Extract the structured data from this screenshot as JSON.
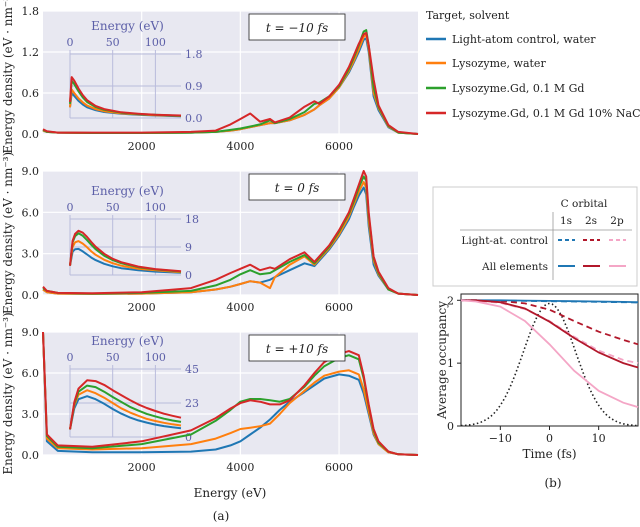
{
  "chart_data": [
    {
      "type": "line",
      "panel": "a",
      "time_label": "t = −10 fs",
      "xlabel": "Energy (eV)",
      "ylabel": "Energy density (eV · nm⁻³)",
      "xlim": [
        0,
        7600
      ],
      "ylim": [
        0,
        1.8
      ],
      "x_ticks": [
        "2000",
        "4000",
        "6000"
      ],
      "y_ticks": [
        "0.0",
        "0.6",
        "1.2",
        "1.8"
      ],
      "x": [
        0,
        80,
        300,
        1000,
        2000,
        3000,
        3500,
        3800,
        4000,
        4200,
        4400,
        4600,
        4700,
        5000,
        5300,
        5500,
        5600,
        5800,
        6000,
        6200,
        6300,
        6400,
        6500,
        6550,
        6600,
        6700,
        6800,
        7000,
        7200,
        7600
      ],
      "series": [
        {
          "name": "Light-atom control, water",
          "color": "#1f77b4",
          "values": [
            0.05,
            0.03,
            0.02,
            0.015,
            0.015,
            0.02,
            0.03,
            0.05,
            0.07,
            0.1,
            0.13,
            0.16,
            0.16,
            0.2,
            0.28,
            0.36,
            0.42,
            0.52,
            0.68,
            0.9,
            1.05,
            1.2,
            1.38,
            1.4,
            1.2,
            0.55,
            0.35,
            0.1,
            0.02,
            0.0
          ]
        },
        {
          "name": "Lysozyme, water",
          "color": "#ff7f0e",
          "values": [
            0.05,
            0.03,
            0.02,
            0.015,
            0.015,
            0.02,
            0.03,
            0.05,
            0.07,
            0.1,
            0.13,
            0.16,
            0.16,
            0.2,
            0.28,
            0.36,
            0.42,
            0.52,
            0.68,
            0.92,
            1.07,
            1.24,
            1.42,
            1.46,
            1.25,
            0.6,
            0.38,
            0.11,
            0.02,
            0.0
          ]
        },
        {
          "name": "Lysozyme.Gd, 0.1 M Gd",
          "color": "#2ca02c",
          "values": [
            0.06,
            0.03,
            0.02,
            0.015,
            0.015,
            0.02,
            0.03,
            0.06,
            0.08,
            0.11,
            0.14,
            0.2,
            0.16,
            0.22,
            0.32,
            0.44,
            0.46,
            0.55,
            0.7,
            0.95,
            1.12,
            1.3,
            1.5,
            1.52,
            1.3,
            0.68,
            0.4,
            0.12,
            0.02,
            0.0
          ]
        },
        {
          "name": "Lysozyme.Gd, 0.1 M Gd 10% NaCl",
          "color": "#d62728",
          "values": [
            0.07,
            0.04,
            0.02,
            0.02,
            0.02,
            0.03,
            0.05,
            0.14,
            0.22,
            0.3,
            0.18,
            0.22,
            0.17,
            0.24,
            0.4,
            0.48,
            0.44,
            0.55,
            0.72,
            0.98,
            1.15,
            1.32,
            1.46,
            1.48,
            1.3,
            0.8,
            0.42,
            0.13,
            0.03,
            0.0
          ]
        }
      ],
      "inset": {
        "xlabel": "Energy (eV)",
        "x_ticks": [
          "0",
          "50",
          "100"
        ],
        "y_ticks": [
          "0.0",
          "0.9",
          "1.8"
        ],
        "xlim": [
          0,
          130
        ],
        "ylim": [
          0,
          1.8
        ],
        "x": [
          0,
          2,
          5,
          10,
          15,
          20,
          30,
          40,
          60,
          80,
          100,
          130
        ],
        "series": [
          {
            "name": "Light-atom control, water",
            "values": [
              0.3,
              0.7,
              0.62,
              0.48,
              0.38,
              0.3,
              0.22,
              0.17,
              0.12,
              0.09,
              0.07,
              0.05
            ]
          },
          {
            "name": "Lysozyme, water",
            "values": [
              0.3,
              0.8,
              0.7,
              0.55,
              0.44,
              0.35,
              0.25,
              0.19,
              0.13,
              0.1,
              0.08,
              0.06
            ]
          },
          {
            "name": "Lysozyme.Gd, 0.1 M Gd",
            "values": [
              0.4,
              1.05,
              0.95,
              0.75,
              0.58,
              0.45,
              0.31,
              0.23,
              0.15,
              0.11,
              0.09,
              0.06
            ]
          },
          {
            "name": "Lysozyme.Gd, 0.1 M Gd 10% NaCl",
            "values": [
              0.45,
              1.15,
              1.05,
              0.83,
              0.64,
              0.5,
              0.34,
              0.25,
              0.16,
              0.12,
              0.09,
              0.07
            ]
          }
        ]
      }
    },
    {
      "type": "line",
      "panel": "a",
      "time_label": "t = 0 fs",
      "xlabel": "Energy (eV)",
      "ylabel": "Energy density (eV · nm⁻³)",
      "xlim": [
        0,
        7600
      ],
      "ylim": [
        0,
        9.0
      ],
      "x_ticks": [
        "2000",
        "4000",
        "6000"
      ],
      "y_ticks": [
        "0.0",
        "3.0",
        "6.0",
        "9.0"
      ],
      "x": [
        0,
        80,
        300,
        1000,
        2000,
        3000,
        3500,
        3800,
        4000,
        4200,
        4400,
        4600,
        4700,
        5000,
        5300,
        5500,
        5600,
        5800,
        6000,
        6200,
        6300,
        6400,
        6500,
        6550,
        6600,
        6700,
        6800,
        7000,
        7200,
        7600
      ],
      "series": [
        {
          "name": "Light-atom control, water",
          "color": "#1f77b4",
          "values": [
            0.4,
            0.2,
            0.1,
            0.08,
            0.1,
            0.2,
            0.4,
            0.6,
            0.8,
            1.0,
            0.9,
            1.1,
            1.3,
            1.8,
            2.3,
            2.1,
            2.5,
            3.3,
            4.3,
            5.5,
            6.4,
            7.2,
            7.8,
            7.3,
            5.0,
            2.2,
            1.4,
            0.4,
            0.1,
            0.0
          ]
        },
        {
          "name": "Lysozyme, water",
          "color": "#ff7f0e",
          "values": [
            0.4,
            0.2,
            0.1,
            0.08,
            0.1,
            0.2,
            0.4,
            0.6,
            0.8,
            1.0,
            0.9,
            0.5,
            1.3,
            2.2,
            2.8,
            2.2,
            2.6,
            3.4,
            4.4,
            5.7,
            6.6,
            7.5,
            8.2,
            7.8,
            5.4,
            2.5,
            1.5,
            0.4,
            0.1,
            0.0
          ]
        },
        {
          "name": "Lysozyme.Gd, 0.1 M Gd",
          "color": "#2ca02c",
          "values": [
            0.5,
            0.3,
            0.15,
            0.1,
            0.15,
            0.3,
            0.7,
            1.1,
            1.5,
            1.8,
            1.5,
            1.6,
            1.8,
            2.4,
            2.9,
            2.3,
            2.7,
            3.5,
            4.6,
            5.9,
            6.8,
            7.8,
            8.6,
            8.3,
            5.8,
            2.7,
            1.6,
            0.4,
            0.1,
            0.0
          ]
        },
        {
          "name": "Lysozyme.Gd, 0.1 M Gd 10% NaCl",
          "color": "#d62728",
          "values": [
            0.6,
            0.3,
            0.15,
            0.12,
            0.2,
            0.5,
            1.1,
            1.6,
            1.9,
            2.2,
            1.8,
            2.0,
            1.9,
            2.6,
            3.1,
            2.4,
            2.8,
            3.6,
            4.7,
            6.0,
            7.0,
            8.0,
            9.0,
            8.6,
            6.0,
            2.8,
            1.7,
            0.5,
            0.1,
            0.0
          ]
        }
      ],
      "inset": {
        "xlabel": "Energy (eV)",
        "x_ticks": [
          "0",
          "50",
          "100"
        ],
        "y_ticks": [
          "0",
          "9",
          "18"
        ],
        "xlim": [
          0,
          130
        ],
        "ylim": [
          0,
          18
        ],
        "x": [
          0,
          3,
          6,
          10,
          15,
          20,
          25,
          30,
          40,
          50,
          60,
          80,
          100,
          130
        ],
        "series": [
          {
            "name": "Light-atom control, water",
            "values": [
              3,
              7.5,
              8.3,
              8.4,
              7.6,
              6.6,
              5.6,
              4.8,
              3.6,
              2.8,
              2.2,
              1.5,
              1.1,
              0.7
            ]
          },
          {
            "name": "Lysozyme, water",
            "values": [
              3,
              9,
              10.5,
              10.9,
              10.1,
              8.9,
              7.6,
              6.5,
              4.9,
              3.8,
              3.0,
              2.0,
              1.5,
              0.9
            ]
          },
          {
            "name": "Lysozyme.Gd, 0.1 M Gd",
            "values": [
              3,
              10.5,
              12.5,
              13.4,
              12.6,
              11.2,
              9.7,
              8.3,
              6.2,
              4.8,
              3.8,
              2.5,
              1.8,
              1.1
            ]
          },
          {
            "name": "Lysozyme.Gd, 0.1 M Gd 10% NaCl",
            "values": [
              3,
              11,
              13.2,
              14.2,
              13.6,
              12.2,
              10.6,
              9.1,
              6.8,
              5.2,
              4.1,
              2.7,
              1.9,
              1.2
            ]
          }
        ]
      }
    },
    {
      "type": "line",
      "panel": "a",
      "time_label": "t = +10 fs",
      "xlabel": "Energy (eV)",
      "ylabel": "Energy density (eV · nm⁻³)",
      "xlim": [
        0,
        7600
      ],
      "ylim": [
        0,
        9.0
      ],
      "x_ticks": [
        "2000",
        "4000",
        "6000"
      ],
      "y_ticks": [
        "0.0",
        "3.0",
        "6.0",
        "9.0"
      ],
      "x": [
        0,
        80,
        300,
        1000,
        2000,
        3000,
        3500,
        3800,
        4000,
        4200,
        4400,
        4600,
        4800,
        5000,
        5300,
        5500,
        5700,
        6000,
        6200,
        6400,
        6500,
        6600,
        6700,
        6800,
        7000,
        7200,
        7600
      ],
      "series": [
        {
          "name": "Light-atom control, water",
          "color": "#1f77b4",
          "values": [
            9.0,
            1.0,
            0.3,
            0.2,
            0.2,
            0.25,
            0.4,
            0.7,
            1.0,
            1.5,
            2.0,
            2.6,
            3.3,
            3.9,
            4.6,
            5.1,
            5.6,
            5.9,
            5.8,
            5.5,
            4.5,
            3.0,
            1.5,
            0.8,
            0.2,
            0.05,
            0.0
          ]
        },
        {
          "name": "Lysozyme, water",
          "color": "#ff7f0e",
          "values": [
            9.0,
            1.2,
            0.5,
            0.4,
            0.5,
            0.8,
            1.2,
            1.6,
            1.9,
            2.0,
            2.1,
            2.3,
            3.0,
            3.8,
            4.7,
            5.3,
            5.8,
            6.1,
            6.2,
            5.9,
            4.8,
            3.2,
            1.6,
            0.8,
            0.2,
            0.05,
            0.0
          ]
        },
        {
          "name": "Lysozyme.Gd, 0.1 M Gd",
          "color": "#2ca02c",
          "values": [
            9.0,
            1.4,
            0.6,
            0.5,
            0.8,
            1.5,
            2.5,
            3.3,
            3.9,
            4.1,
            4.1,
            4.0,
            3.9,
            4.1,
            5.0,
            5.8,
            6.5,
            7.1,
            7.3,
            7.0,
            5.6,
            3.6,
            1.8,
            0.9,
            0.25,
            0.05,
            0.0
          ]
        },
        {
          "name": "Lysozyme.Gd, 0.1 M Gd 10% NaCl",
          "color": "#d62728",
          "values": [
            9.0,
            1.5,
            0.7,
            0.6,
            1.0,
            1.8,
            2.7,
            3.4,
            3.8,
            4.0,
            3.9,
            3.7,
            3.7,
            4.0,
            5.1,
            6.0,
            6.8,
            7.4,
            7.6,
            7.3,
            5.8,
            3.7,
            1.9,
            1.0,
            0.25,
            0.05,
            0.0
          ]
        }
      ],
      "inset": {
        "xlabel": "Energy (eV)",
        "x_ticks": [
          "0",
          "50",
          "100"
        ],
        "y_ticks": [
          "0",
          "23",
          "45"
        ],
        "xlim": [
          0,
          130
        ],
        "ylim": [
          0,
          45
        ],
        "x": [
          0,
          5,
          10,
          20,
          30,
          40,
          50,
          60,
          70,
          80,
          90,
          100,
          110,
          120,
          130
        ],
        "series": [
          {
            "name": "Light-atom control, water",
            "values": [
              5,
              19,
              25,
              27,
              25,
              22,
              18.5,
              15.5,
              13,
              11,
              9.5,
              8.2,
              7.2,
              6.4,
              5.8
            ]
          },
          {
            "name": "Lysozyme, water",
            "values": [
              5,
              21,
              28,
              31,
              29,
              26,
              22.5,
              19,
              16.3,
              14,
              12,
              10.6,
              9.4,
              8.4,
              7.6
            ]
          },
          {
            "name": "Lysozyme.Gd, 0.1 M Gd",
            "values": [
              5,
              22,
              30,
              34,
              33,
              30,
              26.5,
              23.2,
              20,
              17.5,
              15.3,
              13.6,
              12.1,
              10.9,
              10
            ]
          },
          {
            "name": "Lysozyme.Gd, 0.1 M Gd 10% NaCl",
            "values": [
              5,
              23,
              32,
              37.5,
              37,
              34.5,
              31,
              27.7,
              24.5,
              21.6,
              19.2,
              17.2,
              15.4,
              14,
              12.8
            ]
          }
        ]
      }
    },
    {
      "type": "line",
      "panel": "b",
      "xlabel": "Time (fs)",
      "ylabel": "Average occupancy",
      "xlim": [
        -18,
        18
      ],
      "ylim": [
        0,
        2.1
      ],
      "x_ticks": [
        "−10",
        "0",
        "10"
      ],
      "y_ticks": [
        "0",
        "1",
        "2"
      ],
      "legend_title": "C orbital",
      "legend_columns": [
        "1s",
        "2s",
        "2p"
      ],
      "legend_rows": [
        "Light-at. control",
        "All elements"
      ],
      "x": [
        -18,
        -15,
        -10,
        -5,
        0,
        5,
        10,
        15,
        18
      ],
      "series": [
        {
          "name": "Light-at. control 1s",
          "style": "dashed",
          "color": "#1f77b4",
          "values": [
            2.0,
            2.0,
            1.995,
            1.99,
            1.985,
            1.98,
            1.975,
            1.97,
            1.965
          ]
        },
        {
          "name": "Light-at. control 2s",
          "style": "dashed",
          "color": "#b2182b",
          "values": [
            2.0,
            2.0,
            1.99,
            1.95,
            1.85,
            1.67,
            1.5,
            1.37,
            1.3
          ]
        },
        {
          "name": "Light-at. control 2p",
          "style": "dashed",
          "color": "#f4a6c6",
          "values": [
            2.0,
            1.99,
            1.96,
            1.86,
            1.67,
            1.42,
            1.2,
            1.05,
            1.0
          ]
        },
        {
          "name": "All elements 1s",
          "style": "solid",
          "color": "#1f77b4",
          "values": [
            2.0,
            2.0,
            2.0,
            1.995,
            1.99,
            1.985,
            1.98,
            1.975,
            1.97
          ]
        },
        {
          "name": "All elements 2s",
          "style": "solid",
          "color": "#b2182b",
          "values": [
            2.0,
            2.0,
            1.97,
            1.87,
            1.66,
            1.4,
            1.17,
            1.0,
            0.93
          ]
        },
        {
          "name": "All elements 2p",
          "style": "solid",
          "color": "#f4a6c6",
          "values": [
            2.0,
            1.98,
            1.9,
            1.67,
            1.3,
            0.88,
            0.56,
            0.37,
            0.3
          ]
        }
      ],
      "pulse": {
        "name": "X-ray pulse",
        "style": "dotted",
        "color": "#222222",
        "center": 0,
        "sigma": 5.3,
        "peak": 1.95
      }
    }
  ],
  "legend": {
    "title": "Target, solvent",
    "items": [
      {
        "label": "Light-atom control, water",
        "color": "#1f77b4"
      },
      {
        "label": "Lysozyme, water",
        "color": "#ff7f0e"
      },
      {
        "label": "Lysozyme.Gd, 0.1 M Gd",
        "color": "#2ca02c"
      },
      {
        "label": "Lysozyme.Gd, 0.1 M Gd 10% NaCl",
        "color": "#d62728"
      }
    ]
  },
  "captions": {
    "a": "(a)",
    "b": "(b)"
  }
}
